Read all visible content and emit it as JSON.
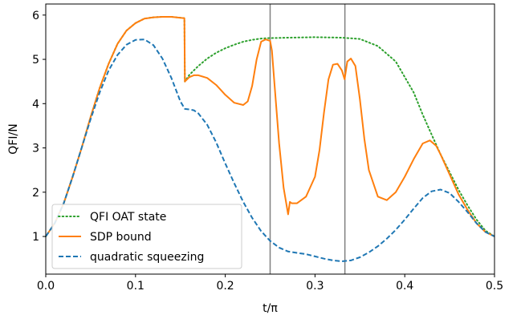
{
  "chart_data": {
    "type": "line",
    "xlabel": "t/π",
    "ylabel": "QFI/N",
    "xlim": [
      0.0,
      0.5
    ],
    "ylim": [
      0.15,
      6.25
    ],
    "xticks": [
      0.0,
      0.1,
      0.2,
      0.3,
      0.4,
      0.5
    ],
    "xtick_labels": [
      "0.0",
      "0.1",
      "0.2",
      "0.3",
      "0.4",
      "0.5"
    ],
    "yticks": [
      1,
      2,
      3,
      4,
      5,
      6
    ],
    "ytick_labels": [
      "1",
      "2",
      "3",
      "4",
      "5",
      "6"
    ],
    "grid": false,
    "legend_position": "lower-left",
    "vertical_lines": [
      0.25,
      0.3333
    ],
    "series": [
      {
        "name": "QFI OAT state",
        "style": "dotted",
        "color": "#2ca02c",
        "x": [
          0.0,
          0.01,
          0.02,
          0.03,
          0.04,
          0.05,
          0.06,
          0.07,
          0.08,
          0.09,
          0.1,
          0.11,
          0.12,
          0.13,
          0.14,
          0.1545,
          0.155,
          0.16,
          0.17,
          0.18,
          0.19,
          0.2,
          0.21,
          0.22,
          0.23,
          0.24,
          0.25,
          0.27,
          0.3,
          0.33,
          0.35,
          0.37,
          0.39,
          0.41,
          0.42,
          0.43,
          0.44,
          0.45,
          0.46,
          0.47,
          0.48,
          0.49,
          0.5
        ],
        "y": [
          1.0,
          1.3,
          1.75,
          2.35,
          3.0,
          3.7,
          4.35,
          4.9,
          5.35,
          5.65,
          5.82,
          5.92,
          5.95,
          5.96,
          5.96,
          5.93,
          4.5,
          4.65,
          4.85,
          5.02,
          5.15,
          5.25,
          5.33,
          5.4,
          5.44,
          5.47,
          5.48,
          5.49,
          5.5,
          5.49,
          5.46,
          5.3,
          4.95,
          4.25,
          3.75,
          3.3,
          2.85,
          2.45,
          2.05,
          1.7,
          1.38,
          1.13,
          1.0
        ]
      },
      {
        "name": "SDP bound",
        "style": "solid",
        "color": "#ff7f0e",
        "x": [
          0.0,
          0.01,
          0.02,
          0.03,
          0.04,
          0.05,
          0.06,
          0.07,
          0.08,
          0.09,
          0.1,
          0.11,
          0.12,
          0.13,
          0.14,
          0.1545,
          0.155,
          0.16,
          0.165,
          0.17,
          0.18,
          0.19,
          0.2,
          0.21,
          0.22,
          0.225,
          0.23,
          0.235,
          0.24,
          0.245,
          0.25,
          0.252,
          0.255,
          0.26,
          0.265,
          0.27,
          0.272,
          0.274,
          0.28,
          0.29,
          0.3,
          0.305,
          0.31,
          0.315,
          0.32,
          0.325,
          0.33,
          0.333,
          0.336,
          0.34,
          0.345,
          0.35,
          0.355,
          0.36,
          0.37,
          0.38,
          0.39,
          0.4,
          0.41,
          0.42,
          0.428,
          0.435,
          0.44,
          0.45,
          0.46,
          0.47,
          0.48,
          0.49,
          0.5
        ],
        "y": [
          1.0,
          1.3,
          1.75,
          2.35,
          3.0,
          3.7,
          4.35,
          4.9,
          5.35,
          5.65,
          5.82,
          5.92,
          5.95,
          5.96,
          5.96,
          5.93,
          4.5,
          4.6,
          4.64,
          4.64,
          4.58,
          4.42,
          4.2,
          4.02,
          3.97,
          4.05,
          4.4,
          5.0,
          5.4,
          5.45,
          5.42,
          5.2,
          4.4,
          3.1,
          2.1,
          1.5,
          1.78,
          1.75,
          1.75,
          1.9,
          2.35,
          2.95,
          3.8,
          4.55,
          4.88,
          4.9,
          4.75,
          4.55,
          4.95,
          5.02,
          4.85,
          4.1,
          3.2,
          2.5,
          1.9,
          1.82,
          2.0,
          2.35,
          2.75,
          3.1,
          3.17,
          3.05,
          2.85,
          2.4,
          1.95,
          1.6,
          1.3,
          1.1,
          1.0
        ]
      },
      {
        "name": "quadratic squeezing",
        "style": "dashed",
        "color": "#1f77b4",
        "x": [
          0.0,
          0.01,
          0.02,
          0.03,
          0.04,
          0.05,
          0.06,
          0.07,
          0.08,
          0.09,
          0.1,
          0.11,
          0.12,
          0.13,
          0.14,
          0.15,
          0.155,
          0.16,
          0.165,
          0.17,
          0.18,
          0.19,
          0.2,
          0.21,
          0.22,
          0.23,
          0.24,
          0.25,
          0.26,
          0.27,
          0.28,
          0.29,
          0.3,
          0.31,
          0.32,
          0.33,
          0.34,
          0.35,
          0.36,
          0.37,
          0.38,
          0.39,
          0.4,
          0.41,
          0.42,
          0.43,
          0.44,
          0.45,
          0.46,
          0.47,
          0.48,
          0.49,
          0.5
        ],
        "y": [
          1.0,
          1.3,
          1.75,
          2.35,
          3.0,
          3.65,
          4.25,
          4.75,
          5.1,
          5.33,
          5.44,
          5.45,
          5.32,
          5.02,
          4.58,
          4.05,
          3.88,
          3.87,
          3.85,
          3.78,
          3.52,
          3.12,
          2.65,
          2.2,
          1.78,
          1.42,
          1.12,
          0.9,
          0.75,
          0.66,
          0.63,
          0.6,
          0.55,
          0.5,
          0.46,
          0.44,
          0.46,
          0.53,
          0.64,
          0.78,
          0.95,
          1.15,
          1.38,
          1.63,
          1.87,
          2.02,
          2.06,
          1.98,
          1.78,
          1.55,
          1.3,
          1.1,
          1.0
        ]
      }
    ]
  }
}
